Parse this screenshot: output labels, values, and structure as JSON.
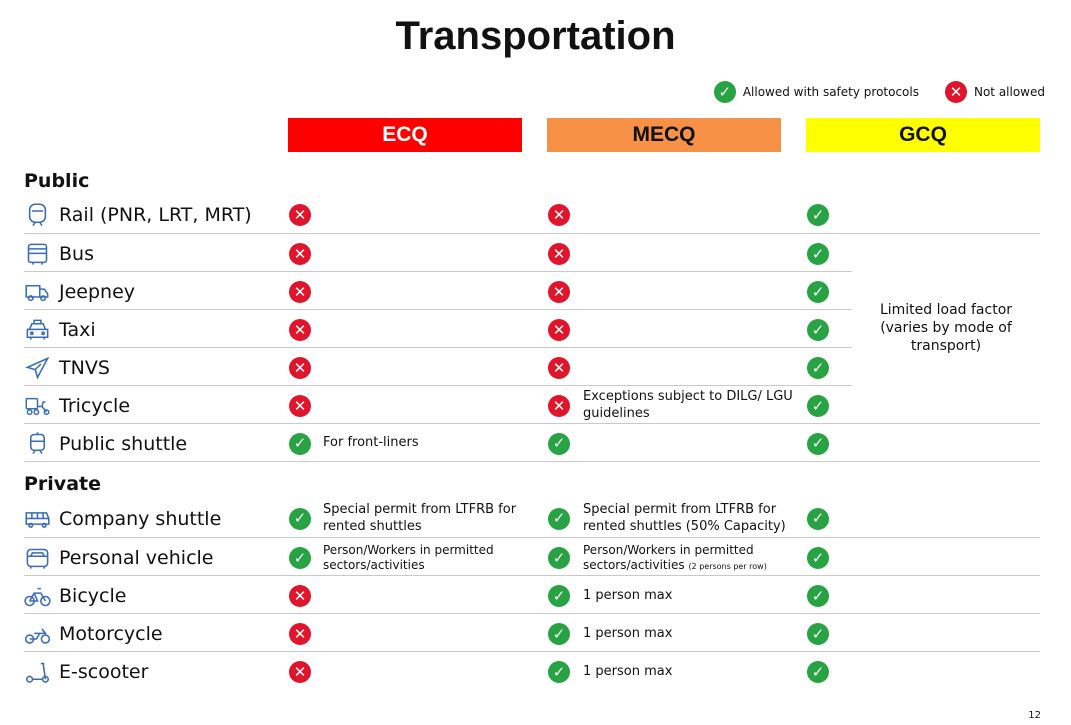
{
  "title": "Transportation",
  "legend": {
    "allowed": "Allowed with safety protocols",
    "not_allowed": "Not allowed"
  },
  "columns": [
    "ECQ",
    "MECQ",
    "GCQ"
  ],
  "colors": {
    "ecq": "#fe0000",
    "mecq": "#f79146",
    "gcq": "#ffff00",
    "allowed": "#27a344",
    "not_allowed": "#e0142a"
  },
  "sections": {
    "public": "Public",
    "private": "Private"
  },
  "rows": [
    {
      "label": "Rail (PNR, LRT, MRT)",
      "icon": "train-icon",
      "ecq": "no",
      "mecq": "no",
      "gcq": "ok"
    },
    {
      "label": "Bus",
      "icon": "bus-icon",
      "ecq": "no",
      "mecq": "no",
      "gcq": "ok"
    },
    {
      "label": "Jeepney",
      "icon": "jeepney-icon",
      "ecq": "no",
      "mecq": "no",
      "gcq": "ok"
    },
    {
      "label": "Taxi",
      "icon": "taxi-icon",
      "ecq": "no",
      "mecq": "no",
      "gcq": "ok"
    },
    {
      "label": "TNVS",
      "icon": "airplane-icon",
      "ecq": "no",
      "mecq": "no",
      "gcq": "ok"
    },
    {
      "label": "Tricycle",
      "icon": "tricycle-icon",
      "ecq": "no",
      "mecq": "no",
      "gcq": "ok",
      "mecq_note": "Exceptions subject to DILG/ LGU guidelines"
    },
    {
      "label": "Public shuttle",
      "icon": "tram-icon",
      "ecq": "ok",
      "mecq": "ok",
      "gcq": "ok",
      "ecq_note": "For front-liners"
    },
    {
      "label": "Company shuttle",
      "icon": "shuttle-bus-icon",
      "ecq": "ok",
      "mecq": "ok",
      "gcq": "ok",
      "ecq_note": "Special permit from LTFRB for rented shuttles",
      "mecq_note": "Special permit from LTFRB for rented shuttles (50% Capacity)"
    },
    {
      "label": "Personal vehicle",
      "icon": "car-icon",
      "ecq": "ok",
      "mecq": "ok",
      "gcq": "ok",
      "ecq_note": "Person/Workers in permitted sectors/activities",
      "mecq_note": "Person/Workers in permitted sectors/activities",
      "mecq_note_small": "(2 persons per row)"
    },
    {
      "label": "Bicycle",
      "icon": "bicycle-icon",
      "ecq": "no",
      "mecq": "ok",
      "gcq": "ok",
      "mecq_note": "1 person max"
    },
    {
      "label": "Motorcycle",
      "icon": "motorcycle-icon",
      "ecq": "no",
      "mecq": "ok",
      "gcq": "ok",
      "mecq_note": "1 person max"
    },
    {
      "label": "E-scooter",
      "icon": "scooter-icon",
      "ecq": "no",
      "mecq": "ok",
      "gcq": "ok",
      "mecq_note": "1 person max"
    }
  ],
  "gcq_note": "Limited load factor (varies by mode of transport)",
  "page_number": "12"
}
